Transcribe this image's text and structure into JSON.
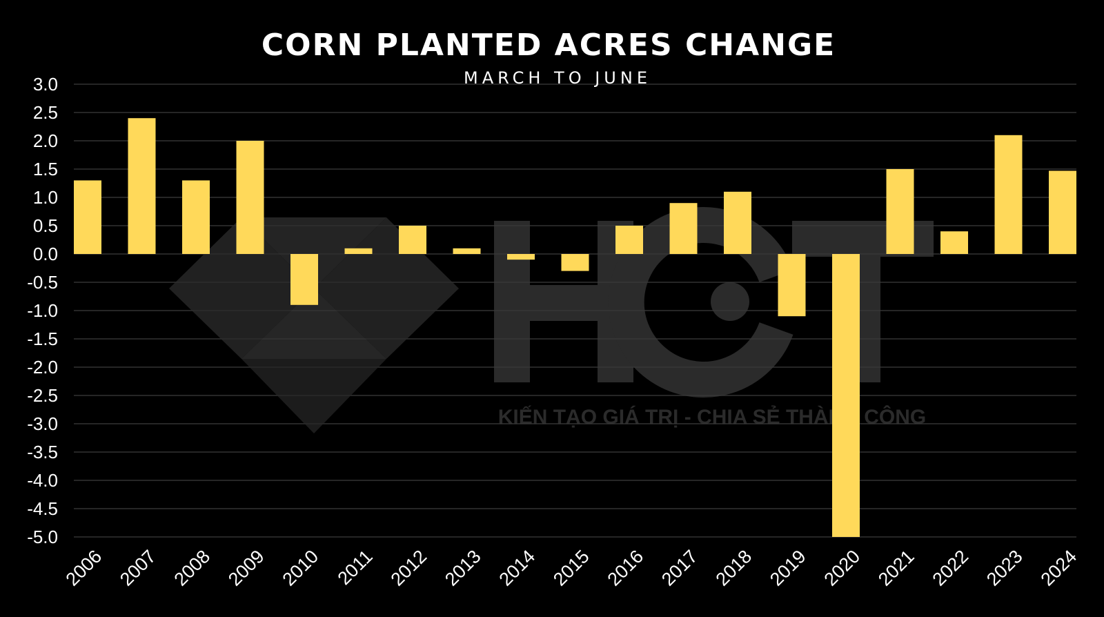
{
  "chart_data": {
    "type": "bar",
    "title": "CORN PLANTED ACRES CHANGE",
    "subtitle": "MARCH TO JUNE",
    "xlabel": "",
    "ylabel": "",
    "categories": [
      "2006",
      "2007",
      "2008",
      "2009",
      "2010",
      "2011",
      "2012",
      "2013",
      "2014",
      "2015",
      "2016",
      "2017",
      "2018",
      "2019",
      "2020",
      "2021",
      "2022",
      "2023",
      "2024"
    ],
    "values": [
      1.3,
      2.4,
      1.3,
      2.0,
      -0.9,
      0.1,
      0.5,
      0.1,
      -0.1,
      -0.3,
      0.5,
      0.9,
      1.1,
      -1.1,
      -5.0,
      1.5,
      0.4,
      2.1,
      1.47
    ],
    "ylim": [
      -5.0,
      3.0
    ],
    "yticks": [
      "3.0",
      "2.5",
      "2.0",
      "1.5",
      "1.0",
      "0.5",
      "0.0",
      "-0.5",
      "-1.0",
      "-1.5",
      "-2.0",
      "-2.5",
      "-3.0",
      "-3.5",
      "-4.0",
      "-4.5",
      "-5.0"
    ],
    "bar_color": "#FFD95A",
    "grid": true,
    "legend": "none"
  },
  "watermark": {
    "brand": "HCT",
    "tagline": "KIẾN TẠO GIÁ TRỊ - CHIA SẺ THÀNH CÔNG",
    "icon": "diamond-logo-icon"
  }
}
